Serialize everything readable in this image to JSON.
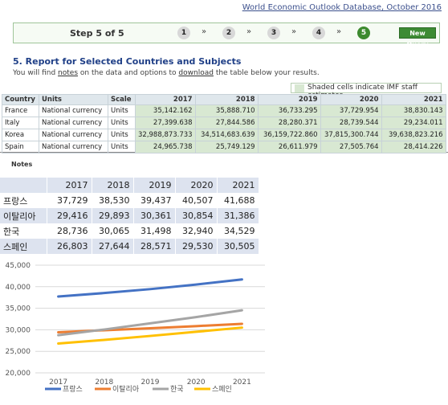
{
  "header": {
    "link_text": "World Economic Outlook Database, October 2016"
  },
  "stepbar": {
    "title": "Step 5 of 5",
    "steps": [
      "1",
      "2",
      "3",
      "4",
      "5"
    ],
    "arrow": "»",
    "new_query": "New Query"
  },
  "report": {
    "title": "5. Report for Selected Countries and Subjects",
    "sub_prefix": "You will find ",
    "sub_link1": "notes",
    "sub_mid": " on the data and options to ",
    "sub_link2": "download",
    "sub_suffix": " the table below your results."
  },
  "legend": {
    "text": "Shaded cells indicate IMF staff estimates",
    "shade_color": "#d8e8d2"
  },
  "table": {
    "headers": [
      "Country",
      "Units",
      "Scale",
      "2017",
      "2018",
      "2019",
      "2020",
      "2021"
    ],
    "rows": [
      [
        "France",
        "National currency",
        "Units",
        "35,142.162",
        "35,888.710",
        "36,733.295",
        "37,729.954",
        "38,830.143"
      ],
      [
        "Italy",
        "National currency",
        "Units",
        "27,399.638",
        "27,844.586",
        "28,280.371",
        "28,739.544",
        "29,234.011"
      ],
      [
        "Korea",
        "National currency",
        "Units",
        "32,988,873.733",
        "34,514,683.639",
        "36,159,722.860",
        "37,815,300.744",
        "39,638,823.216"
      ],
      [
        "Spain",
        "National currency",
        "Units",
        "24,965.738",
        "25,749.129",
        "26,611.979",
        "27,505.764",
        "28,414.226"
      ]
    ]
  },
  "notes_label": "Notes",
  "kr_table": {
    "headers": [
      "2017",
      "2018",
      "2019",
      "2020",
      "2021"
    ],
    "rows": [
      [
        "프랑스",
        "37,729",
        "38,530",
        "39,437",
        "40,507",
        "41,688"
      ],
      [
        "이탈리아",
        "29,416",
        "29,893",
        "30,361",
        "30,854",
        "31,386"
      ],
      [
        "한국",
        "28,736",
        "30,065",
        "31,498",
        "32,940",
        "34,529"
      ],
      [
        "스페인",
        "26,803",
        "27,644",
        "28,571",
        "29,530",
        "30,505"
      ]
    ]
  },
  "chart_data": {
    "type": "line",
    "x": [
      "2017",
      "2018",
      "2019",
      "2020",
      "2021"
    ],
    "ylim": [
      20000,
      45000
    ],
    "yticks": [
      "20,000",
      "25,000",
      "30,000",
      "35,000",
      "40,000",
      "45,000"
    ],
    "grid": true,
    "legend": "bottom",
    "series": [
      {
        "name": "프랑스",
        "color": "#4472c4",
        "values": [
          37729,
          38530,
          39437,
          40507,
          41688
        ]
      },
      {
        "name": "이탈리아",
        "color": "#ed7d31",
        "values": [
          29416,
          29893,
          30361,
          30854,
          31386
        ]
      },
      {
        "name": "한국",
        "color": "#a5a5a5",
        "values": [
          28736,
          30065,
          31498,
          32940,
          34529
        ]
      },
      {
        "name": "스페인",
        "color": "#ffc000",
        "values": [
          26803,
          27644,
          28571,
          29530,
          30505
        ]
      }
    ]
  }
}
